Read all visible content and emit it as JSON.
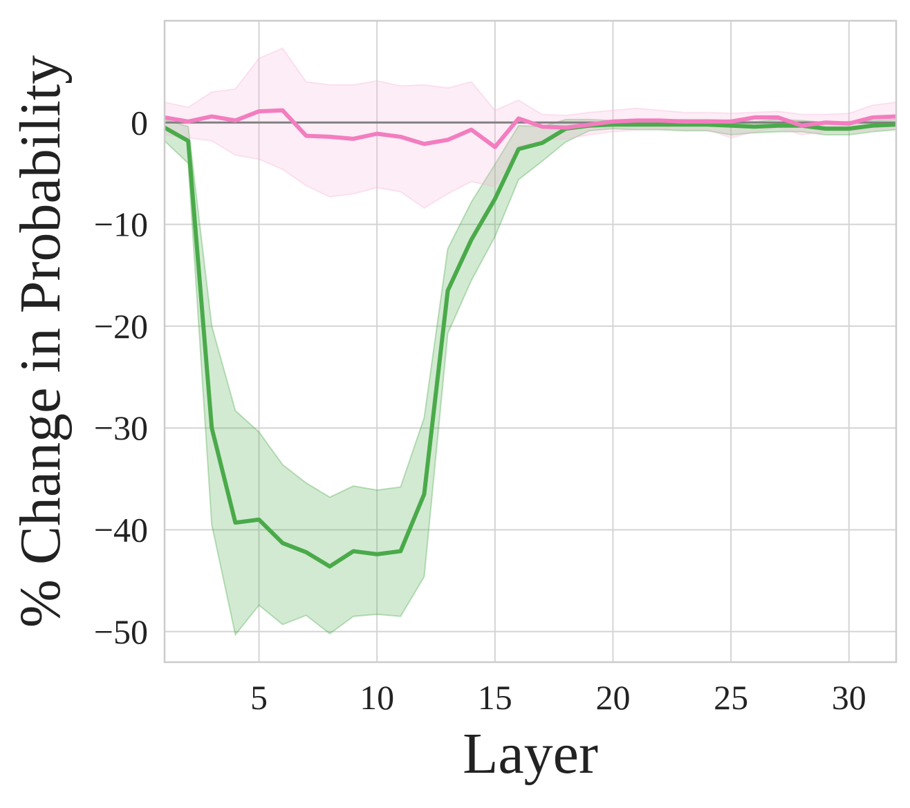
{
  "chart_data": {
    "type": "line",
    "title": "",
    "xlabel": "Layer",
    "ylabel": "% Change in Probability",
    "xlim": [
      1,
      32
    ],
    "ylim": [
      -53,
      10
    ],
    "xticks": [
      5,
      10,
      15,
      20,
      25,
      30
    ],
    "yticks": [
      0,
      -10,
      -20,
      -30,
      -40,
      -50
    ],
    "xtick_labels": [
      "5",
      "10",
      "15",
      "20",
      "25",
      "30"
    ],
    "ytick_labels": [
      "0",
      "−10",
      "−20",
      "−30",
      "−40",
      "−50"
    ],
    "grid": true,
    "reference_line": 0,
    "x": [
      1,
      2,
      3,
      4,
      5,
      6,
      7,
      8,
      9,
      10,
      11,
      12,
      13,
      14,
      15,
      16,
      17,
      18,
      19,
      20,
      21,
      22,
      23,
      24,
      25,
      26,
      27,
      28,
      29,
      30,
      31,
      32
    ],
    "series": [
      {
        "color": "#4aaa4a",
        "fill_color": "#4aaa4a",
        "values": [
          -0.5,
          -1.8,
          -30.0,
          -39.3,
          -39.0,
          -41.3,
          -42.2,
          -43.6,
          -42.1,
          -42.4,
          -42.1,
          -36.5,
          -16.5,
          -11.5,
          -7.5,
          -2.6,
          -2.0,
          -0.6,
          -0.3,
          -0.2,
          -0.2,
          -0.2,
          -0.2,
          -0.2,
          -0.3,
          -0.4,
          -0.3,
          -0.3,
          -0.6,
          -0.6,
          -0.3,
          -0.2
        ],
        "lower": [
          -1.8,
          -4.0,
          -39.5,
          -50.3,
          -47.4,
          -49.3,
          -48.4,
          -50.2,
          -48.5,
          -48.3,
          -48.5,
          -44.6,
          -20.7,
          -15.5,
          -11.2,
          -5.6,
          -3.8,
          -1.9,
          -0.8,
          -0.6,
          -0.7,
          -0.7,
          -0.8,
          -0.8,
          -1.2,
          -1.0,
          -0.9,
          -0.9,
          -1.2,
          -1.2,
          -0.9,
          -0.7
        ],
        "upper": [
          0.3,
          -0.4,
          -20.0,
          -28.3,
          -30.4,
          -33.6,
          -35.4,
          -36.8,
          -35.7,
          -36.1,
          -35.8,
          -29.0,
          -12.4,
          -7.8,
          -4.1,
          -0.3,
          -0.4,
          0.3,
          0.3,
          0.2,
          0.3,
          0.2,
          0.3,
          0.3,
          0.2,
          0.1,
          0.3,
          0.2,
          0.0,
          0.1,
          0.2,
          0.3
        ]
      },
      {
        "color": "#f27dbf",
        "fill_color": "#f7b7db",
        "values": [
          0.5,
          0.1,
          0.6,
          0.2,
          1.1,
          1.2,
          -1.3,
          -1.4,
          -1.6,
          -1.1,
          -1.4,
          -2.1,
          -1.7,
          -0.7,
          -2.4,
          0.4,
          -0.4,
          -0.5,
          -0.2,
          0.1,
          0.2,
          0.2,
          0.1,
          0.1,
          0.1,
          0.5,
          0.5,
          -0.3,
          0.0,
          -0.1,
          0.5,
          0.6
        ],
        "lower": [
          -1.2,
          -1.5,
          -1.8,
          -3.2,
          -3.6,
          -4.6,
          -6.2,
          -7.3,
          -7.0,
          -6.4,
          -6.8,
          -8.4,
          -7.0,
          -5.8,
          -6.3,
          -2.3,
          -1.7,
          -1.6,
          -1.2,
          -0.9,
          -0.7,
          -0.6,
          -0.7,
          -0.7,
          -1.5,
          -0.9,
          -0.5,
          -1.2,
          -0.9,
          -0.9,
          -0.7,
          -0.6
        ],
        "upper": [
          2.0,
          1.5,
          3.0,
          3.3,
          6.3,
          7.3,
          4.0,
          3.7,
          3.7,
          4.1,
          3.6,
          3.7,
          3.4,
          4.0,
          1.2,
          2.2,
          0.8,
          0.7,
          1.0,
          1.2,
          1.4,
          1.2,
          1.0,
          1.0,
          0.9,
          1.0,
          1.1,
          0.8,
          0.8,
          0.9,
          1.7,
          2.0
        ]
      }
    ]
  }
}
